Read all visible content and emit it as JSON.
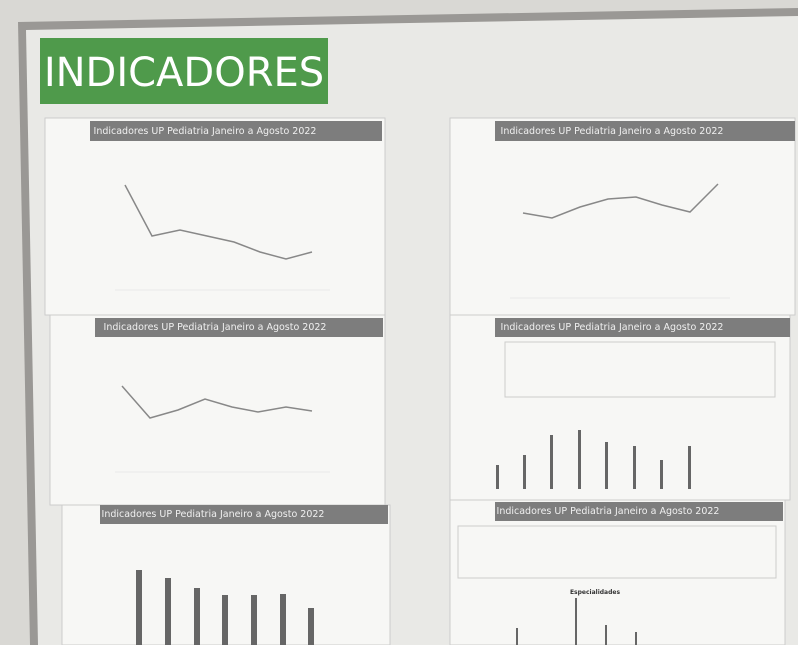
{
  "label": "INDICADORES",
  "sheets": [
    {
      "header": "Indicadores UP Pediatria Janeiro a Agosto 2022"
    },
    {
      "header": "Indicadores UP Pediatria Janeiro a Agosto 2022"
    },
    {
      "header": "Indicadores UP Pediatria Janeiro a Agosto 2022"
    },
    {
      "header": "Indicadores UP Pediatria Janeiro a Agosto 2022"
    },
    {
      "header": "Indicadores UP Pediatria Janeiro a Agosto 2022"
    },
    {
      "header": "Indicadores UP Pediatria Janeiro a Agosto 2022",
      "chart_title": "Especialidades"
    }
  ]
}
